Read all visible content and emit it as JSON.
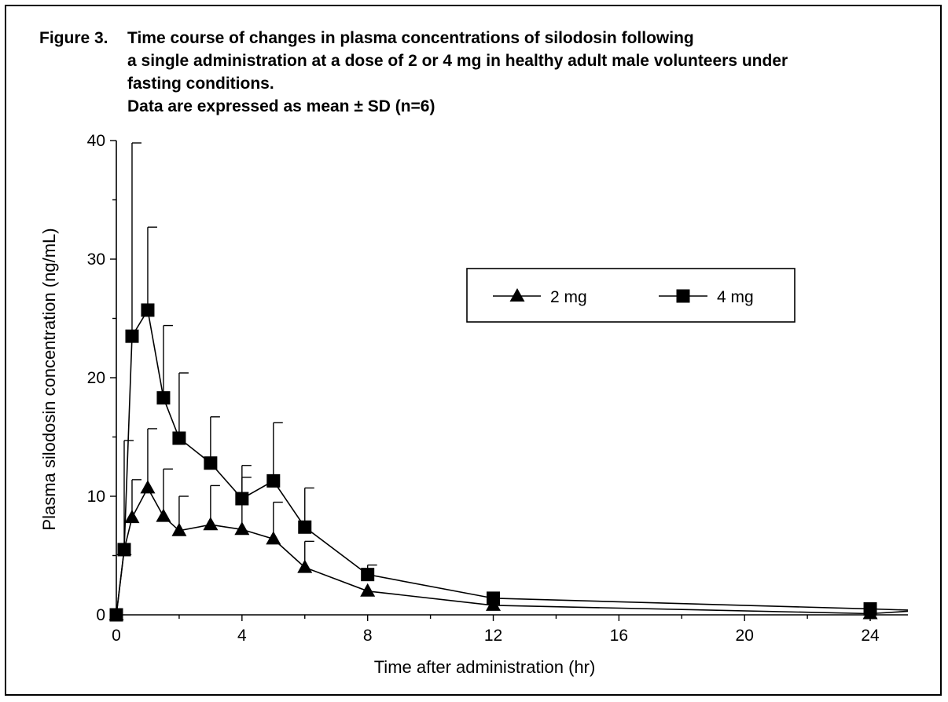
{
  "caption": {
    "label": "Figure 3.",
    "lines": [
      "Time course of changes in plasma concentrations of silodosin following",
      "a single administration at a dose of 2 or 4 mg in healthy adult male volunteers under",
      "fasting conditions.",
      "Data are expressed as mean ± SD (n=6)"
    ]
  },
  "chart_data": {
    "type": "line",
    "xlabel": "Time after administration (hr)",
    "ylabel": "Plasma silodosin concentration (ng/mL)",
    "xlim": [
      0,
      25.2
    ],
    "ylim": [
      0,
      40
    ],
    "xticks": [
      0,
      4,
      8,
      12,
      16,
      20,
      24
    ],
    "yticks": [
      0,
      10,
      20,
      30,
      40
    ],
    "grid": false,
    "legend_position": "upper-right",
    "series": [
      {
        "name": "2 mg",
        "marker": "triangle",
        "x": [
          0,
          0.25,
          0.5,
          1,
          1.5,
          2,
          3,
          4,
          5,
          6,
          8,
          12,
          24,
          25.2
        ],
        "y": [
          0,
          5.5,
          8.2,
          10.7,
          8.3,
          7.1,
          7.6,
          7.2,
          6.4,
          4.0,
          2.0,
          0.8,
          0.1,
          0.3
        ],
        "sd_upper": [
          null,
          null,
          11.4,
          15.7,
          12.3,
          10.0,
          10.9,
          11.6,
          9.5,
          6.2,
          null,
          null,
          null,
          null
        ]
      },
      {
        "name": "4 mg",
        "marker": "square",
        "x": [
          0,
          0.25,
          0.5,
          1,
          1.5,
          2,
          3,
          4,
          5,
          6,
          8,
          12,
          24,
          25.2
        ],
        "y": [
          0,
          5.5,
          23.5,
          25.7,
          18.3,
          14.9,
          12.8,
          9.8,
          11.3,
          7.4,
          3.4,
          1.4,
          0.5,
          0.4
        ],
        "sd_upper": [
          null,
          14.7,
          39.8,
          32.7,
          24.4,
          20.4,
          16.7,
          12.6,
          16.2,
          10.7,
          4.2,
          null,
          null,
          null
        ]
      }
    ]
  }
}
